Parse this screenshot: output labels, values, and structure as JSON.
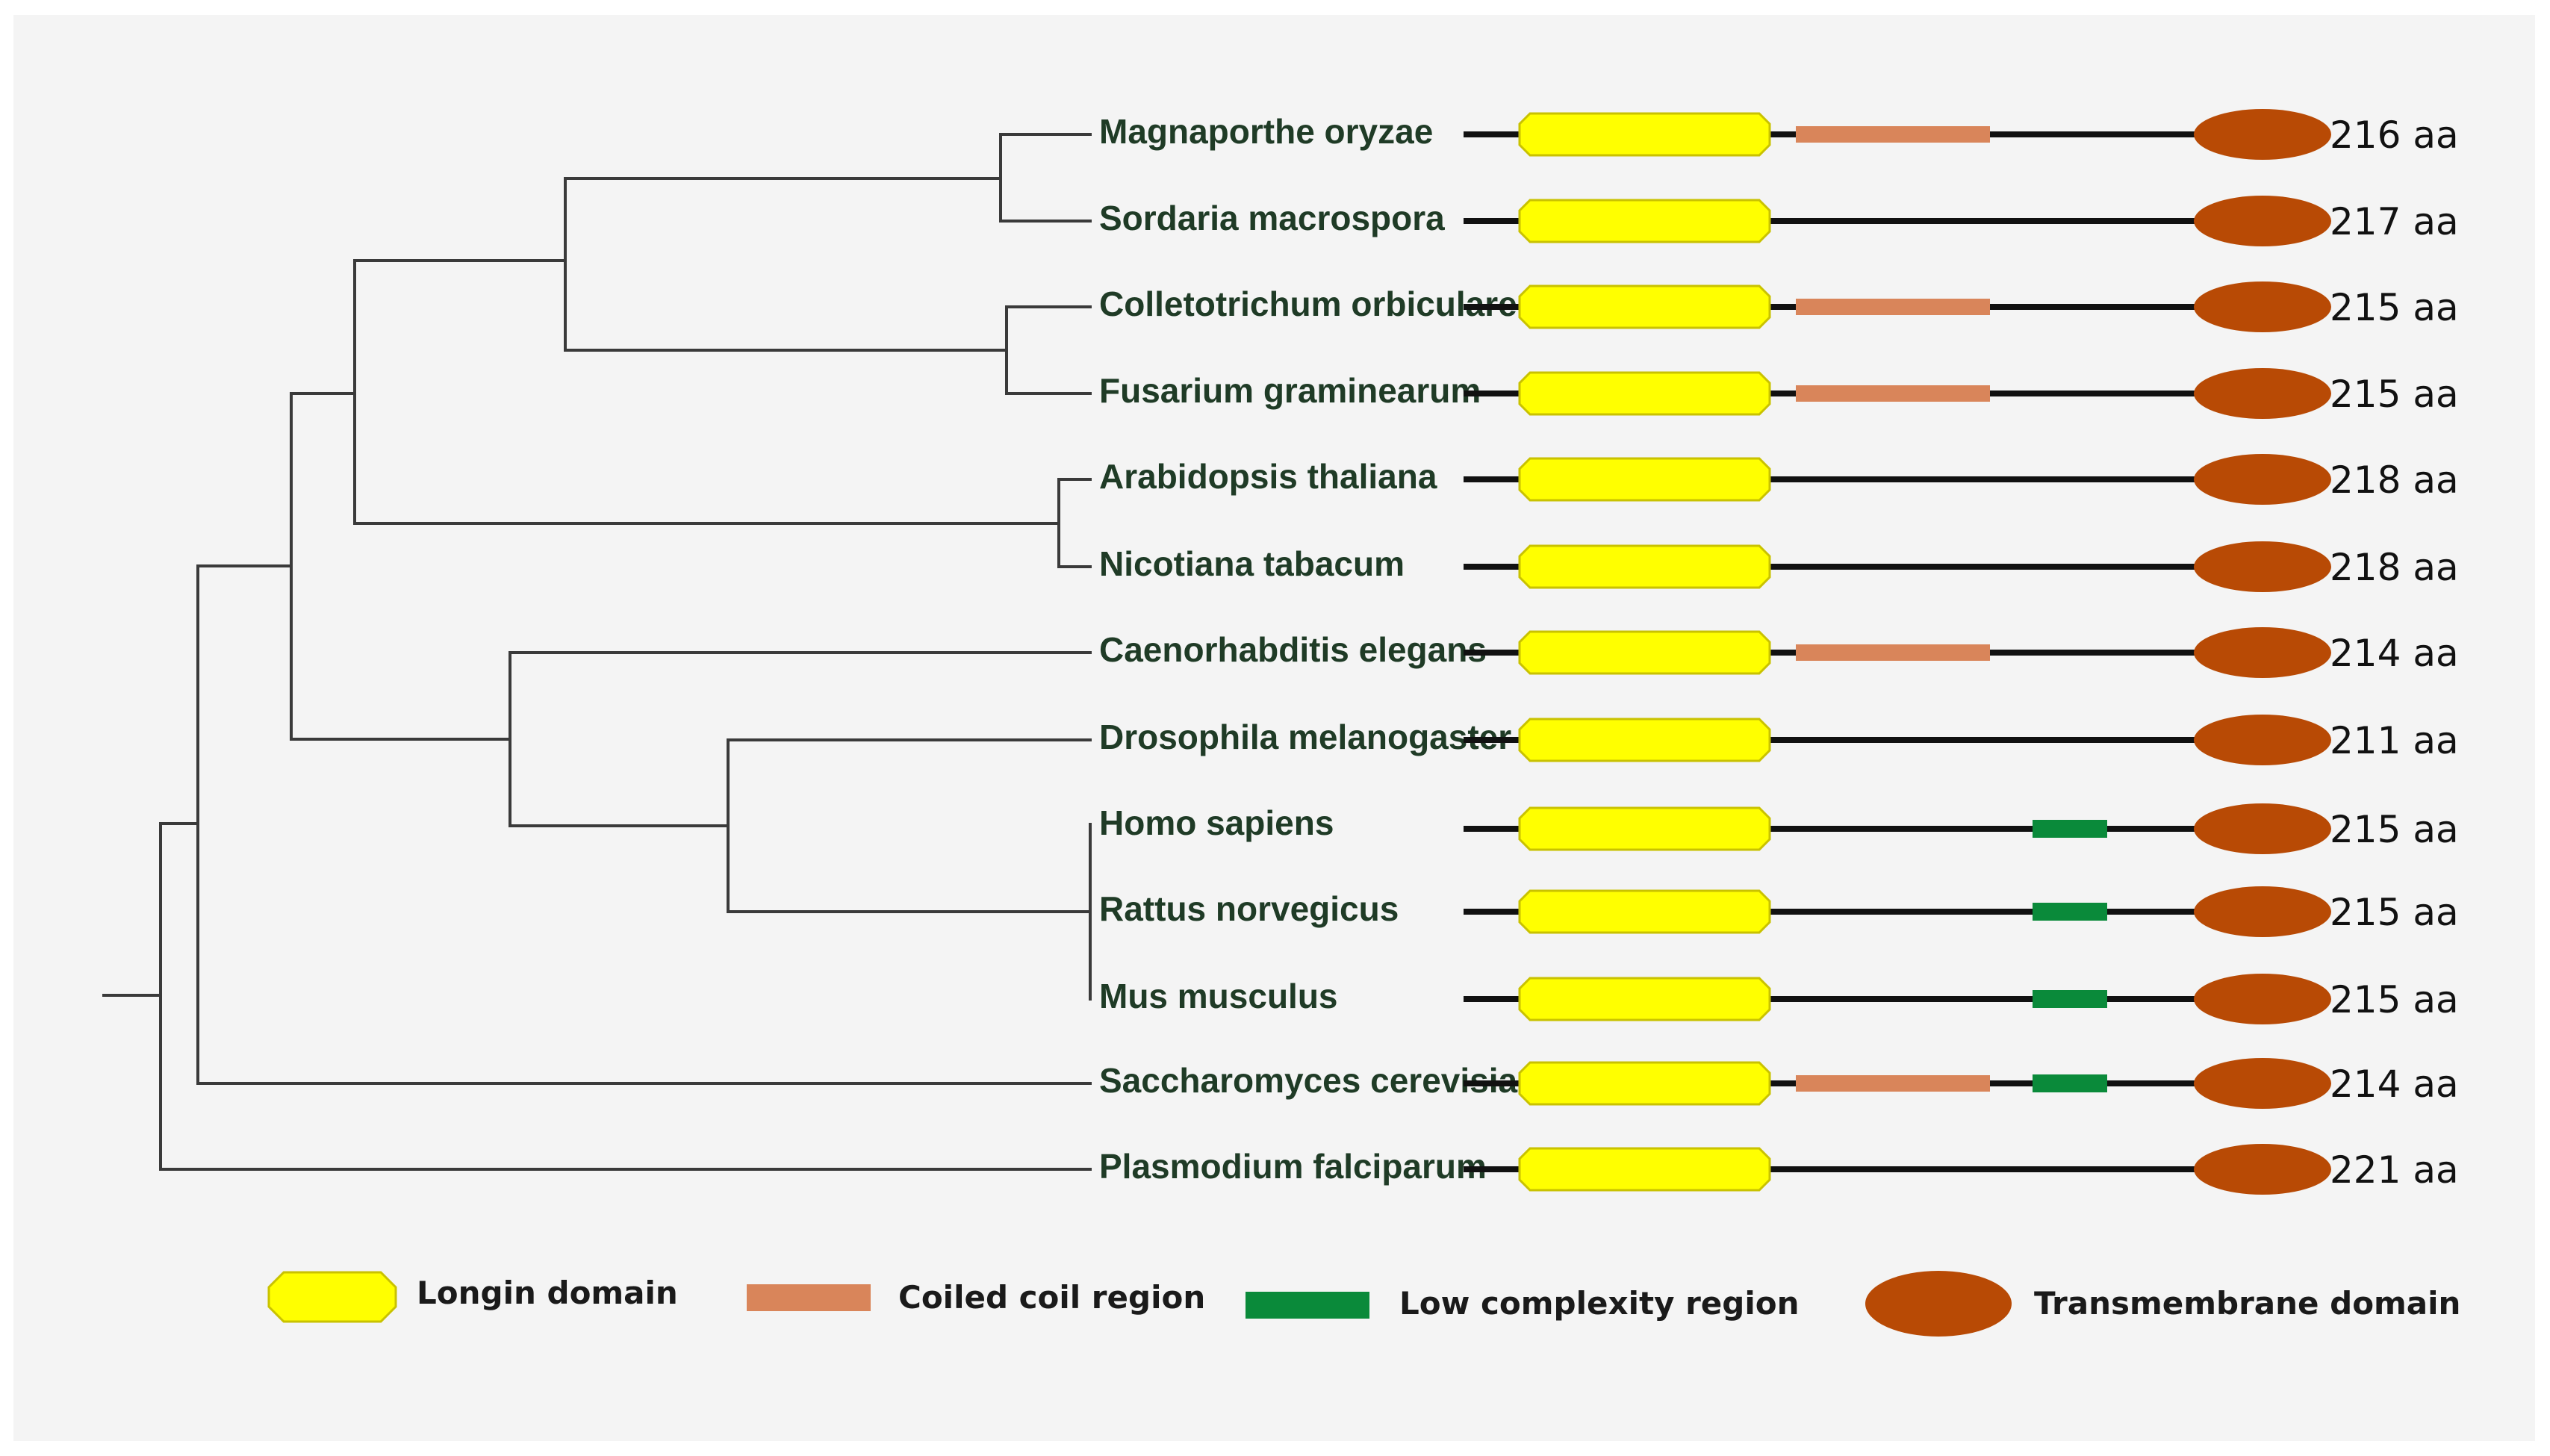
{
  "species": [
    {
      "name": "Magnaporthe oryzae",
      "length": "216 aa",
      "domains": [
        "longin",
        "coiled_coil",
        "transmembrane"
      ]
    },
    {
      "name": "Sordaria macrospora",
      "length": "217 aa",
      "domains": [
        "longin",
        "transmembrane"
      ]
    },
    {
      "name": "Colletotrichum orbiculare",
      "length": "215 aa",
      "domains": [
        "longin",
        "coiled_coil",
        "transmembrane"
      ]
    },
    {
      "name": "Fusarium graminearum",
      "length": "215 aa",
      "domains": [
        "longin",
        "coiled_coil",
        "transmembrane"
      ]
    },
    {
      "name": "Arabidopsis thaliana",
      "length": "218 aa",
      "domains": [
        "longin",
        "transmembrane"
      ]
    },
    {
      "name": "Nicotiana tabacum",
      "length": "218 aa",
      "domains": [
        "longin",
        "transmembrane"
      ]
    },
    {
      "name": "Caenorhabditis elegans",
      "length": "214 aa",
      "domains": [
        "longin",
        "coiled_coil",
        "transmembrane"
      ]
    },
    {
      "name": "Drosophila melanogaster",
      "length": "211 aa",
      "domains": [
        "longin",
        "transmembrane"
      ]
    },
    {
      "name": "Homo sapiens",
      "length": "215 aa",
      "domains": [
        "longin",
        "low_complexity",
        "transmembrane"
      ]
    },
    {
      "name": "Rattus norvegicus",
      "length": "215 aa",
      "domains": [
        "longin",
        "low_complexity",
        "transmembrane"
      ]
    },
    {
      "name": "Mus musculus",
      "length": "215 aa",
      "domains": [
        "longin",
        "low_complexity",
        "transmembrane"
      ]
    },
    {
      "name": "Saccharomyces cerevisiae",
      "length": "214 aa",
      "domains": [
        "longin",
        "coiled_coil",
        "low_complexity",
        "transmembrane"
      ]
    },
    {
      "name": "Plasmodium falciparum",
      "length": "221 aa",
      "domains": [
        "longin",
        "transmembrane"
      ]
    }
  ],
  "legend": {
    "longin": "Longin domain",
    "coiled_coil": "Coiled coil region",
    "low_complexity": "Low complexity region",
    "transmembrane": "Transmembrane domain"
  },
  "colors": {
    "longin_fill": "#ffff00",
    "longin_stroke": "#c9c200",
    "coiled_coil": "#d9855a",
    "low_complexity": "#0a8a3a",
    "transmembrane": "#b84a05",
    "tree": "#3a3a3a",
    "panel": "#f4f4f4"
  }
}
